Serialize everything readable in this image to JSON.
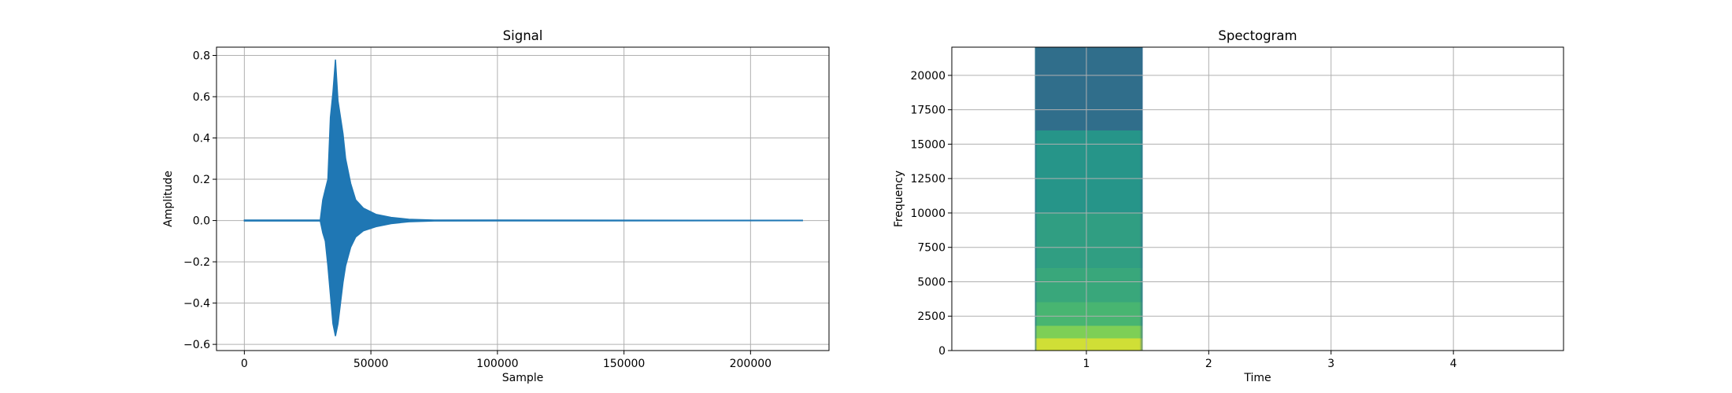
{
  "chart_data": [
    {
      "type": "line",
      "title": "Signal",
      "xlabel": "Sample",
      "ylabel": "Amplitude",
      "xlim": [
        -11000,
        231000
      ],
      "ylim": [
        -0.63,
        0.84
      ],
      "xticks": [
        0,
        50000,
        100000,
        150000,
        200000
      ],
      "xtick_labels": [
        "0",
        "50000",
        "100000",
        "150000",
        "200000"
      ],
      "yticks": [
        -0.6,
        -0.4,
        -0.2,
        0.0,
        0.2,
        0.4,
        0.6,
        0.8
      ],
      "ytick_labels": [
        "−0.6",
        "−0.4",
        "−0.2",
        "0.0",
        "0.2",
        "0.4",
        "0.6",
        "0.8"
      ],
      "grid": true,
      "color": "#1f77b4",
      "x_range": [
        0,
        220500
      ],
      "envelope": [
        {
          "x": 0,
          "min": -0.002,
          "max": 0.002
        },
        {
          "x": 30000,
          "min": -0.002,
          "max": 0.002
        },
        {
          "x": 31000,
          "min": -0.06,
          "max": 0.1
        },
        {
          "x": 32000,
          "min": -0.1,
          "max": 0.15
        },
        {
          "x": 33000,
          "min": -0.22,
          "max": 0.2
        },
        {
          "x": 34000,
          "min": -0.36,
          "max": 0.5
        },
        {
          "x": 35000,
          "min": -0.5,
          "max": 0.62
        },
        {
          "x": 36000,
          "min": -0.56,
          "max": 0.78
        },
        {
          "x": 37000,
          "min": -0.5,
          "max": 0.58
        },
        {
          "x": 38000,
          "min": -0.4,
          "max": 0.5
        },
        {
          "x": 39000,
          "min": -0.3,
          "max": 0.42
        },
        {
          "x": 40000,
          "min": -0.22,
          "max": 0.3
        },
        {
          "x": 42000,
          "min": -0.13,
          "max": 0.18
        },
        {
          "x": 44000,
          "min": -0.08,
          "max": 0.1
        },
        {
          "x": 47000,
          "min": -0.05,
          "max": 0.06
        },
        {
          "x": 52000,
          "min": -0.03,
          "max": 0.03
        },
        {
          "x": 58000,
          "min": -0.015,
          "max": 0.015
        },
        {
          "x": 65000,
          "min": -0.006,
          "max": 0.006
        },
        {
          "x": 75000,
          "min": -0.002,
          "max": 0.002
        },
        {
          "x": 220500,
          "min": -0.001,
          "max": 0.001
        }
      ]
    },
    {
      "type": "heatmap",
      "title": "Spectogram",
      "xlabel": "Time",
      "ylabel": "Frequency",
      "xlim": [
        -0.1,
        4.9
      ],
      "ylim": [
        0,
        22050
      ],
      "xticks": [
        1,
        2,
        3,
        4
      ],
      "xtick_labels": [
        "1",
        "2",
        "3",
        "4"
      ],
      "yticks": [
        0,
        2500,
        5000,
        7500,
        10000,
        12500,
        15000,
        17500,
        20000
      ],
      "ytick_labels": [
        "0",
        "2500",
        "5000",
        "7500",
        "10000",
        "12500",
        "15000",
        "17500",
        "20000"
      ],
      "grid": true,
      "colormap": "viridis",
      "image_extent": {
        "t_start": 0.58,
        "t_end": 1.46,
        "f_start": 0,
        "f_end": 22050
      },
      "intensity_bands": [
        {
          "f_from": 0,
          "f_to": 900,
          "level": 0.93
        },
        {
          "f_from": 900,
          "f_to": 1800,
          "level": 0.8
        },
        {
          "f_from": 1800,
          "f_to": 3500,
          "level": 0.66
        },
        {
          "f_from": 3500,
          "f_to": 6000,
          "level": 0.6
        },
        {
          "f_from": 6000,
          "f_to": 10000,
          "level": 0.56
        },
        {
          "f_from": 10000,
          "f_to": 16000,
          "level": 0.52
        },
        {
          "f_from": 16000,
          "f_to": 22050,
          "level": 0.36
        }
      ]
    }
  ]
}
